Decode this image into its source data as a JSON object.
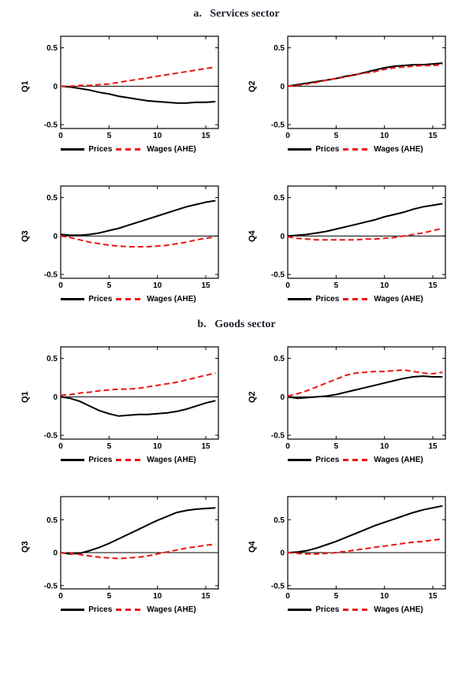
{
  "figure": {
    "panels": [
      {
        "title": "a.   Services sector"
      },
      {
        "title": "b.   Goods sector"
      }
    ]
  },
  "legend": {
    "prices": "Prices",
    "wages": "Wages (AHE)"
  },
  "colors": {
    "prices": "#000000",
    "wages": "#ea1414"
  },
  "chart_data": [
    {
      "type": "line",
      "panel": "a. Services sector",
      "ylabel": "Q1",
      "xlabel": "",
      "x": [
        0,
        1,
        2,
        3,
        4,
        5,
        6,
        7,
        8,
        9,
        10,
        11,
        12,
        13,
        14,
        15,
        16
      ],
      "series": [
        {
          "name": "Prices",
          "style": "solid",
          "color": "#000000",
          "values": [
            0,
            -0.01,
            -0.03,
            -0.05,
            -0.08,
            -0.1,
            -0.13,
            -0.15,
            -0.17,
            -0.19,
            -0.2,
            -0.21,
            -0.22,
            -0.22,
            -0.21,
            -0.21,
            -0.2
          ]
        },
        {
          "name": "Wages (AHE)",
          "style": "dashed",
          "color": "#ea1414",
          "values": [
            0,
            0.0,
            0.01,
            0.01,
            0.02,
            0.03,
            0.05,
            0.07,
            0.09,
            0.11,
            0.13,
            0.15,
            0.17,
            0.19,
            0.21,
            0.23,
            0.25
          ]
        }
      ],
      "xlim": [
        0,
        16.3
      ],
      "ylim": [
        -0.55,
        0.65
      ],
      "x_ticks": [
        0,
        5,
        10,
        15
      ],
      "y_ticks": [
        -0.5,
        0,
        0.5
      ],
      "zero_line": true,
      "legend_position": "bottom"
    },
    {
      "type": "line",
      "panel": "a. Services sector",
      "ylabel": "Q2",
      "xlabel": "",
      "x": [
        0,
        1,
        2,
        3,
        4,
        5,
        6,
        7,
        8,
        9,
        10,
        11,
        12,
        13,
        14,
        15,
        16
      ],
      "series": [
        {
          "name": "Prices",
          "style": "solid",
          "color": "#000000",
          "values": [
            0,
            0.02,
            0.04,
            0.06,
            0.08,
            0.1,
            0.13,
            0.15,
            0.18,
            0.21,
            0.24,
            0.26,
            0.27,
            0.28,
            0.28,
            0.29,
            0.3
          ]
        },
        {
          "name": "Wages (AHE)",
          "style": "dashed",
          "color": "#ea1414",
          "values": [
            0,
            0.01,
            0.03,
            0.05,
            0.08,
            0.1,
            0.12,
            0.15,
            0.17,
            0.19,
            0.22,
            0.24,
            0.25,
            0.26,
            0.27,
            0.27,
            0.28
          ]
        }
      ],
      "xlim": [
        0,
        16.3
      ],
      "ylim": [
        -0.55,
        0.65
      ],
      "x_ticks": [
        0,
        5,
        10,
        15
      ],
      "y_ticks": [
        -0.5,
        0,
        0.5
      ],
      "zero_line": true,
      "legend_position": "bottom"
    },
    {
      "type": "line",
      "panel": "a. Services sector",
      "ylabel": "Q3",
      "xlabel": "",
      "x": [
        0,
        1,
        2,
        3,
        4,
        5,
        6,
        7,
        8,
        9,
        10,
        11,
        12,
        13,
        14,
        15,
        16
      ],
      "series": [
        {
          "name": "Prices",
          "style": "solid",
          "color": "#000000",
          "values": [
            0.02,
            0.01,
            0.01,
            0.02,
            0.04,
            0.07,
            0.1,
            0.14,
            0.18,
            0.22,
            0.26,
            0.3,
            0.34,
            0.38,
            0.41,
            0.44,
            0.46
          ]
        },
        {
          "name": "Wages (AHE)",
          "style": "dashed",
          "color": "#ea1414",
          "values": [
            0,
            -0.02,
            -0.05,
            -0.08,
            -0.1,
            -0.12,
            -0.13,
            -0.14,
            -0.14,
            -0.14,
            -0.13,
            -0.12,
            -0.1,
            -0.08,
            -0.05,
            -0.03,
            -0.01
          ]
        }
      ],
      "xlim": [
        0,
        16.3
      ],
      "ylim": [
        -0.55,
        0.65
      ],
      "x_ticks": [
        0,
        5,
        10,
        15
      ],
      "y_ticks": [
        -0.5,
        0,
        0.5
      ],
      "zero_line": true,
      "legend_position": "bottom"
    },
    {
      "type": "line",
      "panel": "a. Services sector",
      "ylabel": "Q4",
      "xlabel": "",
      "x": [
        0,
        1,
        2,
        3,
        4,
        5,
        6,
        7,
        8,
        9,
        10,
        11,
        12,
        13,
        14,
        15,
        16
      ],
      "series": [
        {
          "name": "Prices",
          "style": "solid",
          "color": "#000000",
          "values": [
            0,
            0.01,
            0.02,
            0.04,
            0.06,
            0.09,
            0.12,
            0.15,
            0.18,
            0.21,
            0.25,
            0.28,
            0.31,
            0.35,
            0.38,
            0.4,
            0.42
          ]
        },
        {
          "name": "Wages (AHE)",
          "style": "dashed",
          "color": "#ea1414",
          "values": [
            -0.01,
            -0.03,
            -0.04,
            -0.05,
            -0.05,
            -0.05,
            -0.05,
            -0.05,
            -0.04,
            -0.04,
            -0.03,
            -0.02,
            0.0,
            0.02,
            0.04,
            0.07,
            0.1
          ]
        }
      ],
      "xlim": [
        0,
        16.3
      ],
      "ylim": [
        -0.55,
        0.65
      ],
      "x_ticks": [
        0,
        5,
        10,
        15
      ],
      "y_ticks": [
        -0.5,
        0,
        0.5
      ],
      "zero_line": true,
      "legend_position": "bottom"
    },
    {
      "type": "line",
      "panel": "b. Goods sector",
      "ylabel": "Q1",
      "xlabel": "",
      "x": [
        0,
        1,
        2,
        3,
        4,
        5,
        6,
        7,
        8,
        9,
        10,
        11,
        12,
        13,
        14,
        15,
        16
      ],
      "series": [
        {
          "name": "Prices",
          "style": "solid",
          "color": "#000000",
          "values": [
            0,
            -0.02,
            -0.06,
            -0.12,
            -0.18,
            -0.22,
            -0.25,
            -0.24,
            -0.23,
            -0.23,
            -0.22,
            -0.21,
            -0.19,
            -0.16,
            -0.12,
            -0.08,
            -0.05
          ]
        },
        {
          "name": "Wages (AHE)",
          "style": "dashed",
          "color": "#ea1414",
          "values": [
            0.02,
            0.03,
            0.05,
            0.06,
            0.08,
            0.09,
            0.1,
            0.1,
            0.11,
            0.13,
            0.15,
            0.17,
            0.19,
            0.22,
            0.25,
            0.28,
            0.31
          ]
        }
      ],
      "xlim": [
        0,
        16.3
      ],
      "ylim": [
        -0.55,
        0.65
      ],
      "x_ticks": [
        0,
        5,
        10,
        15
      ],
      "y_ticks": [
        -0.5,
        0,
        0.5
      ],
      "zero_line": true,
      "legend_position": "bottom"
    },
    {
      "type": "line",
      "panel": "b. Goods sector",
      "ylabel": "Q2",
      "xlabel": "",
      "x": [
        0,
        1,
        2,
        3,
        4,
        5,
        6,
        7,
        8,
        9,
        10,
        11,
        12,
        13,
        14,
        15,
        16
      ],
      "series": [
        {
          "name": "Prices",
          "style": "solid",
          "color": "#000000",
          "values": [
            0,
            -0.02,
            -0.01,
            0.0,
            0.01,
            0.03,
            0.06,
            0.09,
            0.12,
            0.15,
            0.18,
            0.21,
            0.24,
            0.26,
            0.27,
            0.26,
            0.26
          ]
        },
        {
          "name": "Wages (AHE)",
          "style": "dashed",
          "color": "#ea1414",
          "values": [
            0.01,
            0.04,
            0.08,
            0.13,
            0.18,
            0.23,
            0.28,
            0.31,
            0.32,
            0.33,
            0.33,
            0.34,
            0.35,
            0.33,
            0.31,
            0.3,
            0.32
          ]
        }
      ],
      "xlim": [
        0,
        16.3
      ],
      "ylim": [
        -0.55,
        0.65
      ],
      "x_ticks": [
        0,
        5,
        10,
        15
      ],
      "y_ticks": [
        -0.5,
        0,
        0.5
      ],
      "zero_line": true,
      "legend_position": "bottom"
    },
    {
      "type": "line",
      "panel": "b. Goods sector",
      "ylabel": "Q3",
      "xlabel": "",
      "x": [
        0,
        1,
        2,
        3,
        4,
        5,
        6,
        7,
        8,
        9,
        10,
        11,
        12,
        13,
        14,
        15,
        16
      ],
      "series": [
        {
          "name": "Prices",
          "style": "solid",
          "color": "#000000",
          "values": [
            0,
            -0.02,
            -0.01,
            0.03,
            0.08,
            0.14,
            0.21,
            0.28,
            0.35,
            0.42,
            0.49,
            0.55,
            0.61,
            0.64,
            0.66,
            0.67,
            0.68
          ]
        },
        {
          "name": "Wages (AHE)",
          "style": "dashed",
          "color": "#ea1414",
          "values": [
            0,
            -0.01,
            -0.03,
            -0.05,
            -0.07,
            -0.08,
            -0.09,
            -0.08,
            -0.07,
            -0.05,
            -0.02,
            0.01,
            0.04,
            0.07,
            0.09,
            0.11,
            0.13
          ]
        }
      ],
      "xlim": [
        0,
        16.3
      ],
      "ylim": [
        -0.55,
        0.85
      ],
      "x_ticks": [
        0,
        5,
        10,
        15
      ],
      "y_ticks": [
        -0.5,
        0,
        0.5
      ],
      "zero_line": true,
      "legend_position": "bottom"
    },
    {
      "type": "line",
      "panel": "b. Goods sector",
      "ylabel": "Q4",
      "xlabel": "",
      "x": [
        0,
        1,
        2,
        3,
        4,
        5,
        6,
        7,
        8,
        9,
        10,
        11,
        12,
        13,
        14,
        15,
        16
      ],
      "series": [
        {
          "name": "Prices",
          "style": "solid",
          "color": "#000000",
          "values": [
            0,
            0.01,
            0.03,
            0.07,
            0.12,
            0.17,
            0.23,
            0.29,
            0.35,
            0.41,
            0.46,
            0.51,
            0.56,
            0.61,
            0.65,
            0.68,
            0.71
          ]
        },
        {
          "name": "Wages (AHE)",
          "style": "dashed",
          "color": "#ea1414",
          "values": [
            0,
            -0.01,
            -0.02,
            -0.02,
            -0.01,
            0.0,
            0.02,
            0.04,
            0.06,
            0.08,
            0.1,
            0.12,
            0.14,
            0.16,
            0.17,
            0.19,
            0.21
          ]
        }
      ],
      "xlim": [
        0,
        16.3
      ],
      "ylim": [
        -0.55,
        0.85
      ],
      "x_ticks": [
        0,
        5,
        10,
        15
      ],
      "y_ticks": [
        -0.5,
        0,
        0.5
      ],
      "zero_line": true,
      "legend_position": "bottom"
    }
  ]
}
